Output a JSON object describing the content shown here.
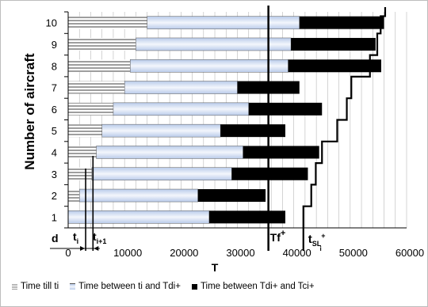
{
  "chart_data": {
    "type": "bar",
    "orientation": "horizontal",
    "stacked": true,
    "xlabel": "T",
    "ylabel": "Number of aircraft",
    "xlim": [
      0,
      60000
    ],
    "x_ticks": [
      "0",
      "10000",
      "20000",
      "30000",
      "40000",
      "50000",
      "60000"
    ],
    "categories": [
      "1",
      "2",
      "3",
      "4",
      "5",
      "6",
      "7",
      "8",
      "9",
      "10"
    ],
    "series": [
      {
        "name": "Time till ti",
        "color": "#9e9e9e",
        "pattern": "horizontal-stripes",
        "values": [
          0,
          2000,
          4200,
          5000,
          6000,
          8000,
          10000,
          11000,
          12000,
          14000
        ]
      },
      {
        "name": "Time between ti and Tdi+",
        "color": "#dde7f6",
        "pattern": "gradient",
        "values": [
          25000,
          21000,
          24800,
          26000,
          21000,
          24000,
          20000,
          28000,
          27500,
          27000
        ]
      },
      {
        "name": "Time between Tdi+ and Tci+",
        "color": "#000000",
        "values": [
          13500,
          12000,
          13500,
          13500,
          11500,
          13000,
          11000,
          16500,
          15000,
          15000
        ]
      }
    ],
    "vertical_lines": [
      {
        "label": "Tf",
        "superscript": "+",
        "x": 35500
      }
    ],
    "tsl_step_line": {
      "label": "t",
      "subscript": "SL",
      "sub_index": "i",
      "superscript": "+",
      "points": [
        [
          41700,
          0.5
        ],
        [
          41700,
          1.5
        ],
        [
          43100,
          1.5
        ],
        [
          43100,
          2.5
        ],
        [
          43900,
          2.5
        ],
        [
          43900,
          3.5
        ],
        [
          45000,
          3.5
        ],
        [
          45000,
          4.5
        ],
        [
          47700,
          4.5
        ],
        [
          47700,
          5.5
        ],
        [
          49400,
          5.5
        ],
        [
          49400,
          6.5
        ],
        [
          50200,
          6.5
        ],
        [
          50200,
          7.5
        ],
        [
          53500,
          7.5
        ],
        [
          53500,
          8.5
        ],
        [
          54800,
          8.5
        ],
        [
          54800,
          9.5
        ],
        [
          55400,
          9.5
        ],
        [
          55400,
          10.3
        ],
        [
          56200,
          10.3
        ],
        [
          56200,
          10.5
        ]
      ]
    },
    "annotations": [
      {
        "text": "d"
      },
      {
        "text": "t",
        "subscript": "i"
      },
      {
        "text": "t",
        "subscript": "i+1"
      }
    ],
    "grid": "vertical",
    "legend_position": "bottom"
  }
}
